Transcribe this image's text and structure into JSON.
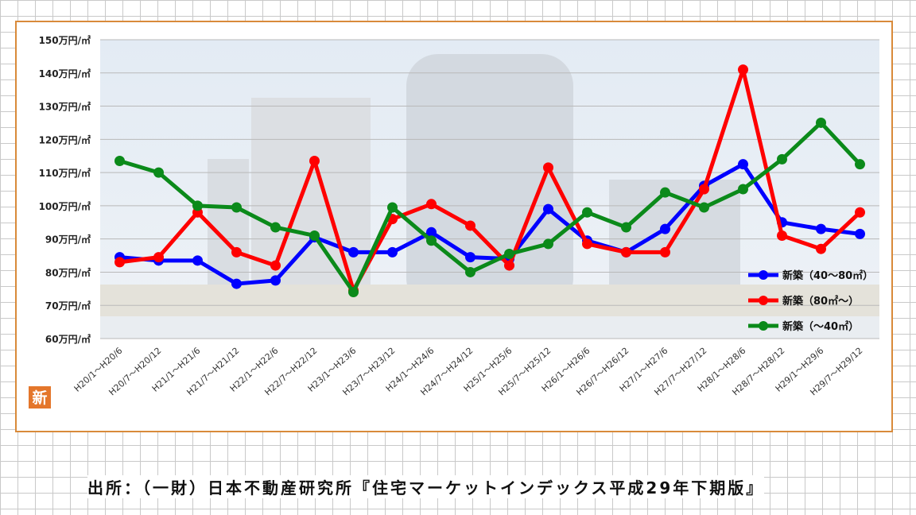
{
  "chart_data": {
    "type": "line",
    "ylim": [
      60,
      150
    ],
    "yticks": [
      60,
      70,
      80,
      90,
      100,
      110,
      120,
      130,
      140,
      150
    ],
    "ytick_suffix": "万円/㎡",
    "categories": [
      "H20/1～H20/6",
      "H20/7～H20/12",
      "H21/1～H21/6",
      "H21/7～H21/12",
      "H22/1～H22/6",
      "H22/7～H22/12",
      "H23/1～H23/6",
      "H23/7～H23/12",
      "H24/1～H24/6",
      "H24/7～H24/12",
      "H25/1～H25/6",
      "H25/7～H25/12",
      "H26/1～H26/6",
      "H26/7～H26/12",
      "H27/1～H27/6",
      "H27/7～H27/12",
      "H28/1～H28/6",
      "H28/7～H28/12",
      "H29/1～H29/6",
      "H29/7～H29/12"
    ],
    "series": [
      {
        "name": "新築（40～80㎡）",
        "color": "#0000ff",
        "values": [
          84.5,
          83.5,
          83.5,
          76.5,
          77.5,
          90.5,
          86,
          86,
          92,
          84.5,
          84,
          99,
          89.5,
          86,
          93,
          106,
          112.5,
          95,
          93,
          91.5
        ]
      },
      {
        "name": "新築（80㎡～）",
        "color": "#ff0000",
        "values": [
          83,
          84.5,
          98,
          86,
          82,
          113.5,
          74.5,
          96,
          100.5,
          94,
          82,
          111.5,
          88.5,
          86,
          86,
          105,
          141,
          91,
          87,
          98
        ]
      },
      {
        "name": "新築（～40㎡）",
        "color": "#0b8a1a",
        "values": [
          113.5,
          110,
          100,
          99.5,
          93.5,
          91,
          74,
          99.5,
          89.5,
          80,
          85.5,
          88.5,
          98,
          93.5,
          104,
          99.5,
          105,
          114,
          125,
          112.5
        ]
      }
    ],
    "legend_position": "bottom-right",
    "grid": true
  },
  "badge_text": "新",
  "source_caption": "出所：（一財）日本不動産研究所『住宅マーケットインデックス平成29年下期版』"
}
